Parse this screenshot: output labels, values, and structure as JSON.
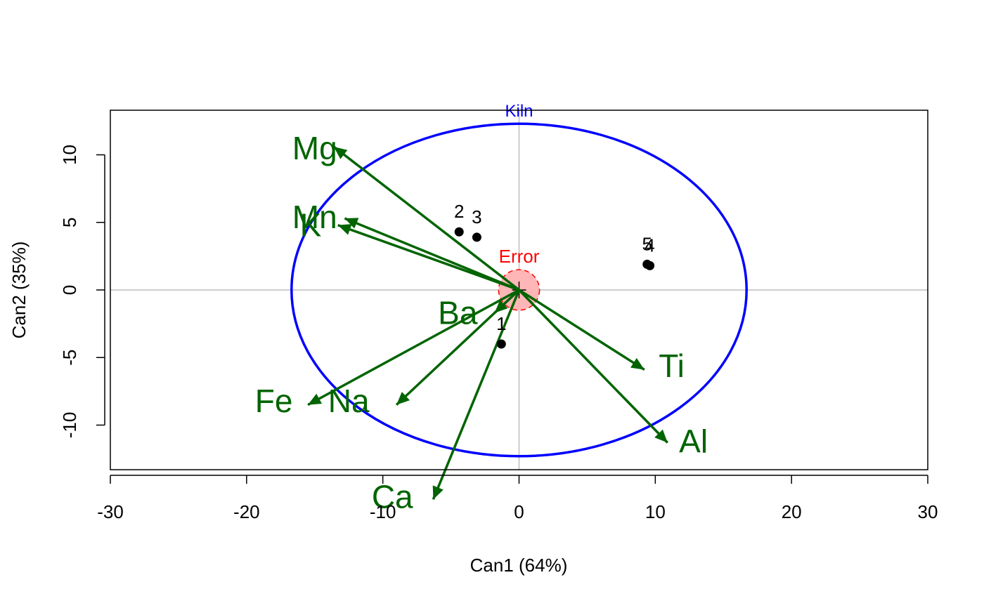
{
  "chart_data": {
    "type": "scatter",
    "xlabel": "Can1 (64%)",
    "ylabel": "Can2 (35%)",
    "xlim": [
      -30,
      30
    ],
    "ylim": [
      -13.3,
      13.3
    ],
    "xticks": [
      -30,
      -20,
      -10,
      0,
      10,
      20,
      30
    ],
    "yticks": [
      -10,
      -5,
      0,
      5,
      10
    ],
    "reference_lines": {
      "x": 0,
      "y": 0,
      "color": "#bebebe"
    },
    "colors": {
      "points": "#000000",
      "vectors": "#006400",
      "hypothesis_ellipse": "#0000ff",
      "error_ellipse": "#ff0000",
      "error_fill": "#ffb6b6"
    },
    "points": [
      {
        "label": "1",
        "x": -1.3,
        "y": -4.0
      },
      {
        "label": "2",
        "x": -4.4,
        "y": 4.3
      },
      {
        "label": "3",
        "x": -3.1,
        "y": 3.9
      },
      {
        "label": "4",
        "x": 9.6,
        "y": 1.8
      },
      {
        "label": "5",
        "x": 9.4,
        "y": 1.9
      }
    ],
    "vectors": [
      {
        "name": "Mg",
        "x": -13.6,
        "y": 10.6,
        "label_x": -15.0,
        "label_y": 10.5
      },
      {
        "name": "Mn",
        "x": -12.8,
        "y": 5.3,
        "label_x": -15.0,
        "label_y": 5.4
      },
      {
        "name": "K",
        "x": -13.3,
        "y": 4.8,
        "label_x": -15.3,
        "label_y": 4.8
      },
      {
        "name": "Ba",
        "x": -1.8,
        "y": -1.7,
        "label_x": -4.5,
        "label_y": -1.7
      },
      {
        "name": "Fe",
        "x": -15.5,
        "y": -8.5,
        "label_x": -18.0,
        "label_y": -8.2
      },
      {
        "name": "Na",
        "x": -9.0,
        "y": -8.5,
        "label_x": -12.5,
        "label_y": -8.2
      },
      {
        "name": "Ca",
        "x": -6.3,
        "y": -15.5,
        "label_x": -9.3,
        "label_y": -15.3
      },
      {
        "name": "Ti",
        "x": 9.2,
        "y": -5.9,
        "label_x": 11.2,
        "label_y": -5.6
      },
      {
        "name": "Al",
        "x": 10.9,
        "y": -11.3,
        "label_x": 12.8,
        "label_y": -11.2
      }
    ],
    "hypothesis_ellipse": {
      "label": "Kiln",
      "center": [
        0,
        0
      ],
      "rx": 16.7,
      "ry": 12.3
    },
    "error_ellipse": {
      "label": "Error",
      "center": [
        0,
        0
      ],
      "rx": 1.5,
      "ry": 1.5
    }
  }
}
